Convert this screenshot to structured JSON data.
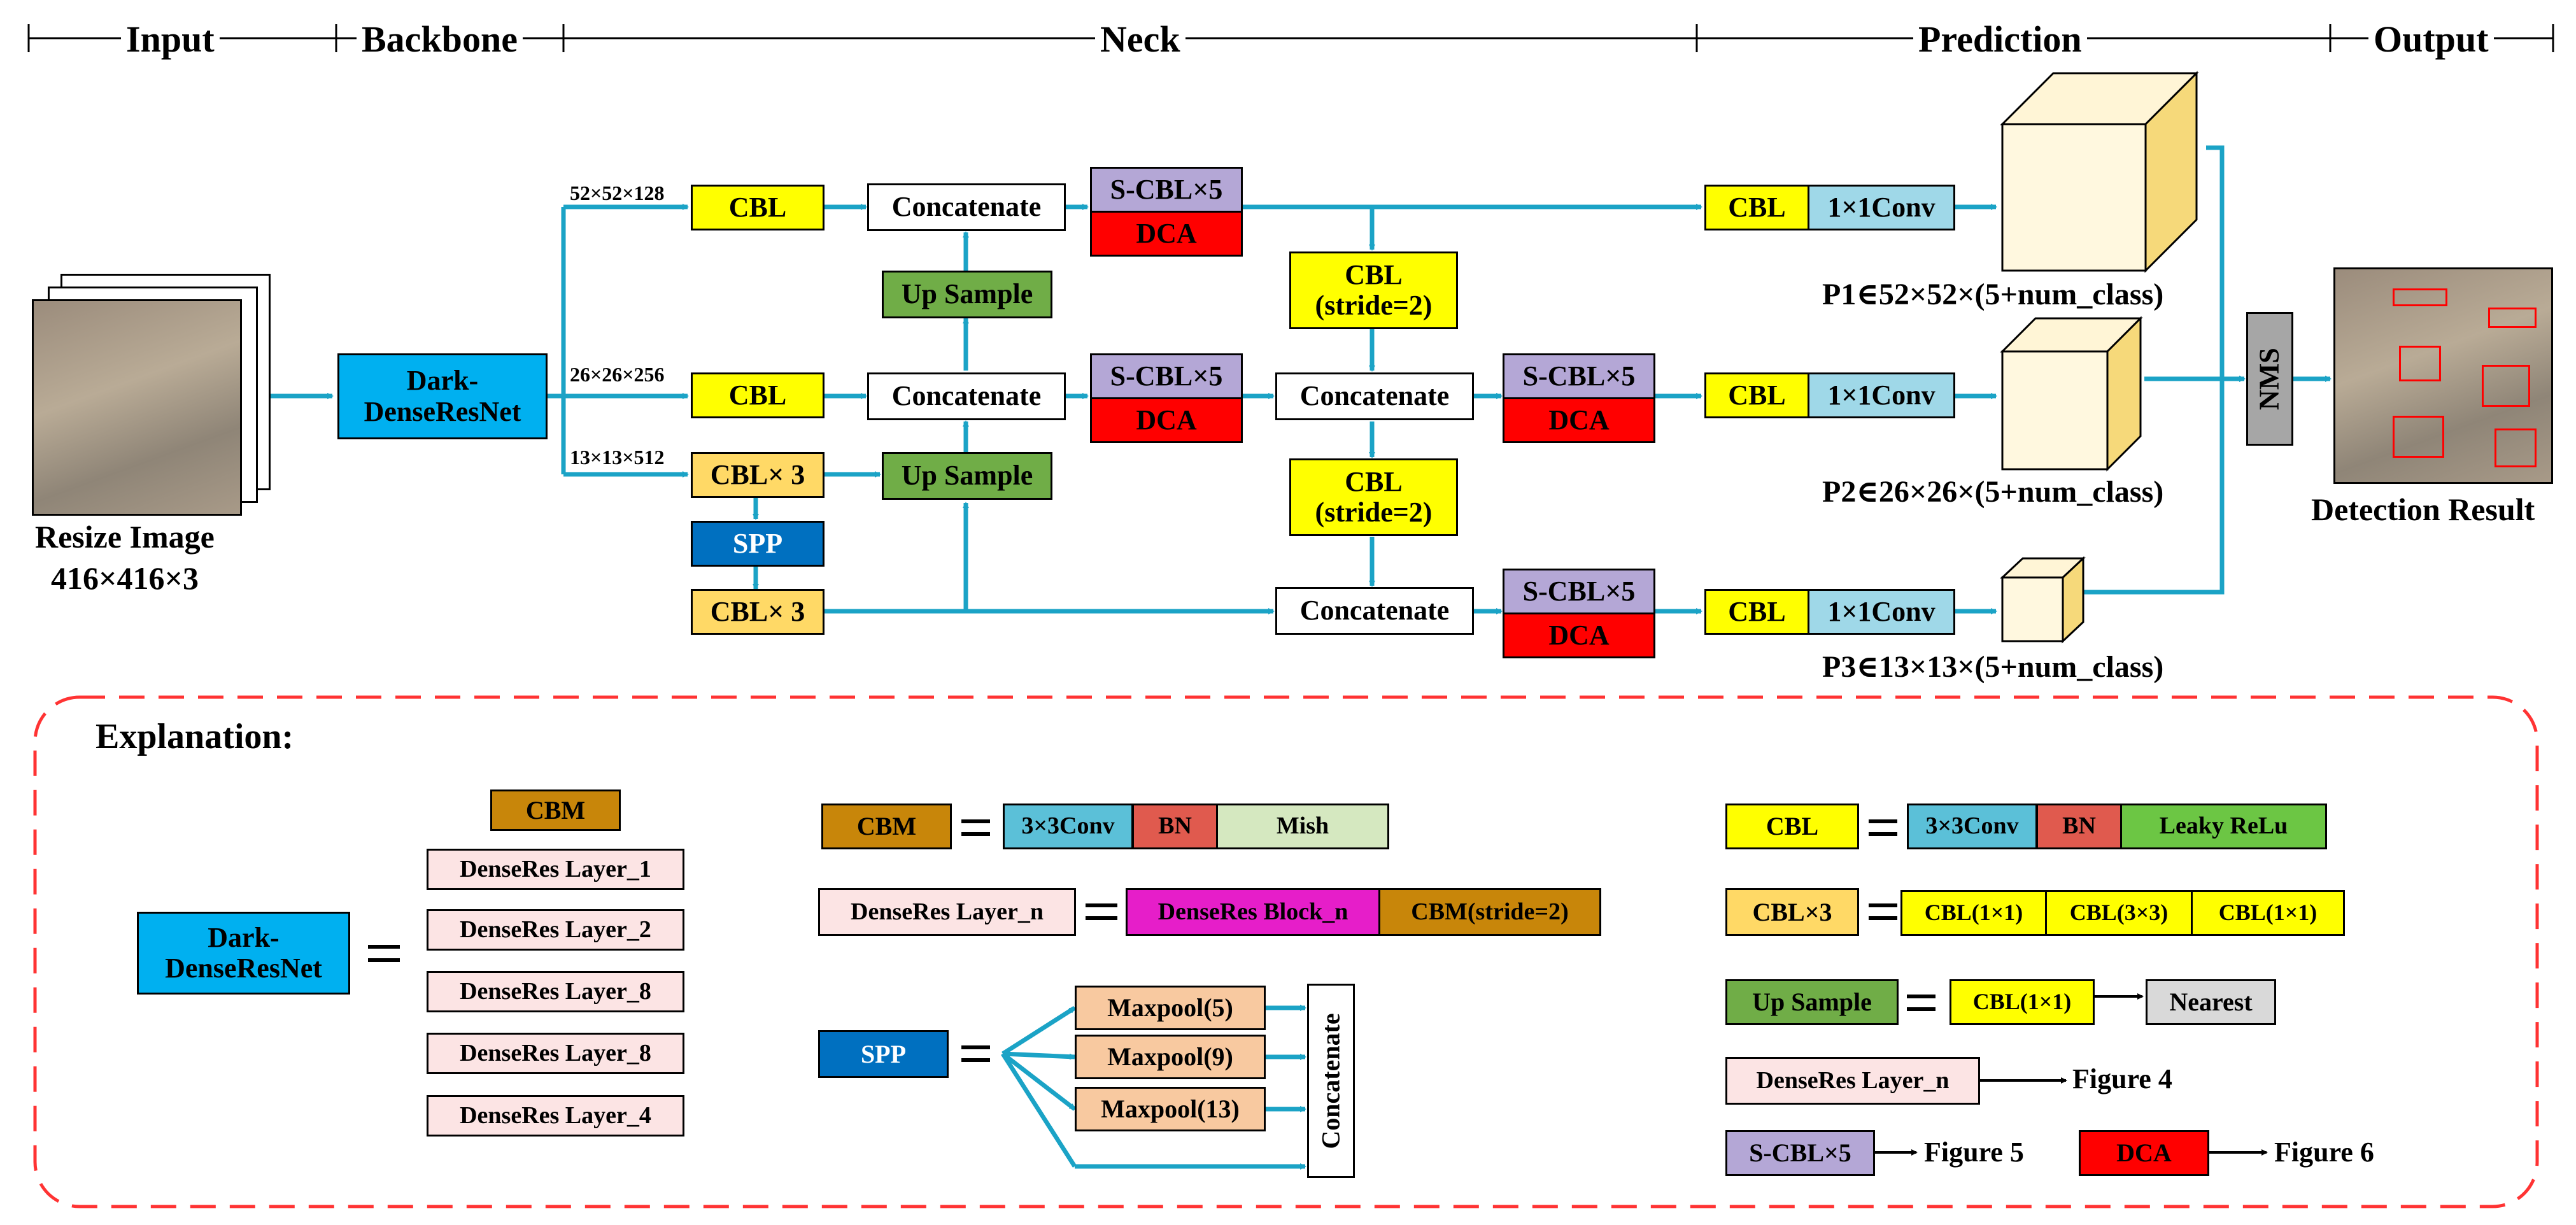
{
  "headers": {
    "input": "Input",
    "backbone": "Backbone",
    "neck": "Neck",
    "prediction": "Prediction",
    "output": "Output"
  },
  "input": {
    "caption1": "Resize Image",
    "caption2": "416×416×3"
  },
  "backbone": {
    "label": "Dark-\nDenseResNet"
  },
  "dims": {
    "d52": "52×52×128",
    "d26": "26×26×256",
    "d13": "13×13×512"
  },
  "neck": {
    "cbl": "CBL",
    "cbl3": "CBL× 3",
    "spp": "SPP",
    "concat": "Concatenate",
    "upsample": "Up Sample",
    "scbl": "S-CBL×5",
    "dca": "DCA",
    "cbl_stride": "CBL\n(stride=2)"
  },
  "prediction": {
    "cbl": "CBL",
    "conv": "1×1Conv",
    "p1": "P1∈52×52×(5+num_class)",
    "p2": "P2∈26×26×(5+num_class)",
    "p3": "P3∈13×13×(5+num_class)"
  },
  "output": {
    "nms": "NMS",
    "caption": "Detection Result"
  },
  "explanation": {
    "title": "Explanation:",
    "dark": "Dark-\nDenseResNet",
    "stack": [
      "CBM",
      "DenseRes Layer_1",
      "DenseRes Layer_2",
      "DenseRes Layer_8",
      "DenseRes Layer_8",
      "DenseRes Layer_4"
    ],
    "cbm": "CBM",
    "cbm_parts": [
      "3×3Conv",
      "BN",
      "Mish"
    ],
    "dlayer": "DenseRes Layer_n",
    "dlayer_parts": [
      "DenseRes Block_n",
      "CBM(stride=2)"
    ],
    "spp": "SPP",
    "pools": [
      "Maxpool(5)",
      "Maxpool(9)",
      "Maxpool(13)"
    ],
    "concat": "Concatenate",
    "cbl": "CBL",
    "cbl_parts": [
      "3×3Conv",
      "BN",
      "Leaky ReLu"
    ],
    "cbl3": "CBL×3",
    "cbl3_parts": [
      "CBL(1×1)",
      "CBL(3×3)",
      "CBL(1×1)"
    ],
    "up": "Up Sample",
    "up_parts": [
      "CBL(1×1)",
      "Nearest"
    ],
    "dref": "DenseRes Layer_n",
    "dref_fig": "Figure 4",
    "scbl": "S-CBL×5",
    "scbl_fig": "Figure 5",
    "dca": "DCA",
    "dca_fig": "Figure 6",
    "eq": "="
  },
  "colors": {
    "arrow": "#1ba3c6",
    "dash": "#ff3333"
  }
}
